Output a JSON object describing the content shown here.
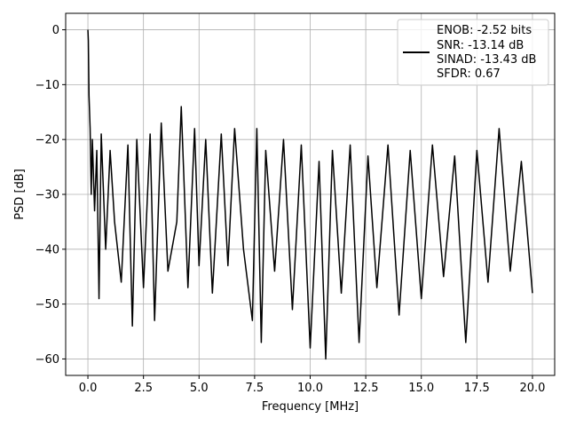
{
  "chart_data": {
    "type": "line",
    "title": "",
    "xlabel": "Frequency [MHz]",
    "ylabel": "PSD [dB]",
    "xlim": [
      -1.0,
      21.0
    ],
    "ylim": [
      -63.0,
      3.0
    ],
    "xticks": [
      0.0,
      2.5,
      5.0,
      7.5,
      10.0,
      12.5,
      15.0,
      17.5,
      20.0
    ],
    "xtick_labels": [
      "0.0",
      "2.5",
      "5.0",
      "7.5",
      "10.0",
      "12.5",
      "15.0",
      "17.5",
      "20.0"
    ],
    "yticks": [
      0,
      -10,
      -20,
      -30,
      -40,
      -50,
      -60
    ],
    "ytick_labels": [
      "0",
      "−10",
      "−20",
      "−30",
      "−40",
      "−50",
      "−60"
    ],
    "grid": true,
    "legend_position": "top-right",
    "legend_lines": [
      "ENOB: -2.52 bits",
      "SNR: -13.14 dB",
      "SINAD: -13.43 dB",
      "SFDR: 0.67"
    ],
    "series": [
      {
        "color": "#000000",
        "x": [
          0.0,
          0.02,
          0.05,
          0.1,
          0.15,
          0.2,
          0.3,
          0.4,
          0.5,
          0.6,
          0.8,
          1.0,
          1.2,
          1.5,
          1.8,
          2.0,
          2.2,
          2.5,
          2.8,
          3.0,
          3.3,
          3.6,
          4.0,
          4.2,
          4.5,
          4.8,
          5.0,
          5.3,
          5.6,
          6.0,
          6.3,
          6.6,
          7.0,
          7.4,
          7.6,
          7.8,
          8.0,
          8.4,
          8.8,
          9.2,
          9.6,
          10.0,
          10.4,
          10.7,
          11.0,
          11.4,
          11.8,
          12.2,
          12.6,
          13.0,
          13.5,
          14.0,
          14.5,
          15.0,
          15.5,
          16.0,
          16.5,
          17.0,
          17.5,
          18.0,
          18.5,
          19.0,
          19.5,
          20.0
        ],
        "y": [
          0.0,
          -2.0,
          -12.0,
          -18.0,
          -30.0,
          -20.0,
          -33.0,
          -22.0,
          -49.0,
          -19.0,
          -40.0,
          -22.0,
          -35.0,
          -46.0,
          -21.0,
          -54.0,
          -20.0,
          -47.0,
          -19.0,
          -53.0,
          -17.0,
          -44.0,
          -35.0,
          -14.0,
          -47.0,
          -18.0,
          -43.0,
          -20.0,
          -48.0,
          -19.0,
          -43.0,
          -18.0,
          -40.0,
          -53.0,
          -18.0,
          -57.0,
          -22.0,
          -44.0,
          -20.0,
          -51.0,
          -21.0,
          -58.0,
          -24.0,
          -60.0,
          -22.0,
          -48.0,
          -21.0,
          -57.0,
          -23.0,
          -47.0,
          -21.0,
          -52.0,
          -22.0,
          -49.0,
          -21.0,
          -45.0,
          -23.0,
          -57.0,
          -22.0,
          -46.0,
          -18.0,
          -44.0,
          -24.0,
          -48.0
        ]
      }
    ]
  }
}
